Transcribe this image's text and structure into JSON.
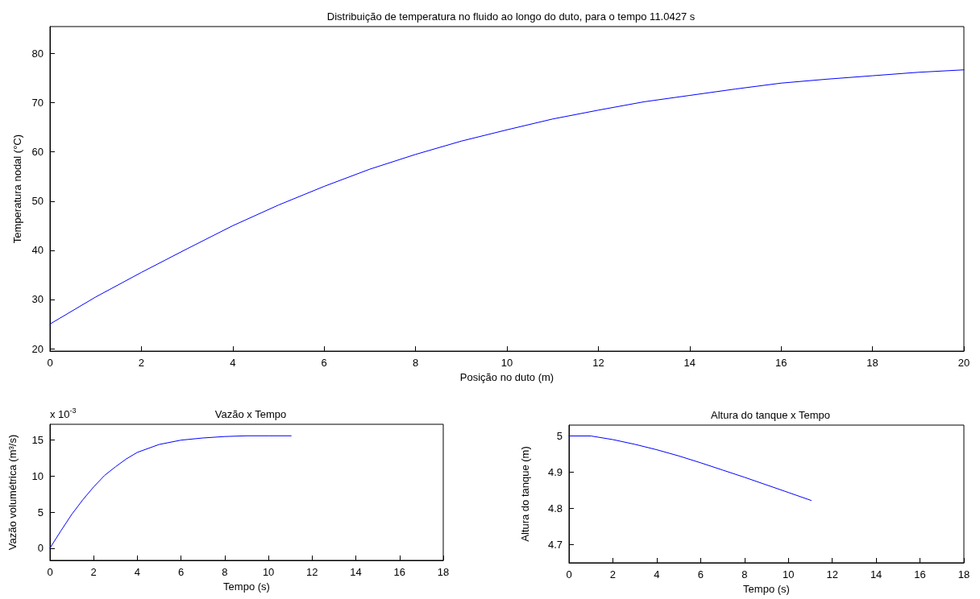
{
  "chart_data": [
    {
      "type": "line",
      "title": "Distribuição de temperatura no fluido ao longo do duto, para o tempo 11.0427 s",
      "xlabel": "Posição no duto (m)",
      "ylabel": "Temperatura nodal (°C)",
      "x": [
        0,
        1,
        2,
        3,
        4,
        5,
        6,
        7,
        8,
        9,
        10,
        11,
        12,
        13,
        14,
        15,
        16,
        17,
        18,
        19,
        20
      ],
      "series": [
        {
          "color": "#0000ff",
          "values": [
            25,
            30.5,
            35.5,
            40.3,
            45,
            49.2,
            53,
            56.5,
            59.5,
            62.2,
            64.5,
            66.7,
            68.5,
            70.2,
            71.5,
            72.8,
            74,
            74.8,
            75.5,
            76.2,
            76.7
          ]
        }
      ],
      "xlim": [
        0,
        20
      ],
      "xticks": [
        0,
        2,
        4,
        6,
        8,
        10,
        12,
        14,
        16,
        18,
        20
      ],
      "ylim": [
        19.5,
        85.5
      ],
      "yticks": [
        20,
        30,
        40,
        50,
        60,
        70,
        80
      ],
      "grid": false,
      "marker": "none",
      "line_style": "solid"
    },
    {
      "type": "line",
      "title": "Vazão x Tempo",
      "xlabel": "Tempo (s)",
      "ylabel": "Vazão volumétrica (m³/s)",
      "annotations": [
        "x 10$^{-3}$"
      ],
      "x": [
        0,
        0.5,
        1,
        1.5,
        2,
        2.5,
        3,
        3.5,
        4,
        5,
        6,
        7,
        8,
        9,
        10,
        11.04
      ],
      "series": [
        {
          "color": "#0000ff",
          "values": [
            0,
            2.4,
            4.7,
            6.7,
            8.5,
            10.1,
            11.3,
            12.4,
            13.3,
            14.4,
            15,
            15.3,
            15.5,
            15.6,
            15.6,
            15.6
          ]
        }
      ],
      "xlim": [
        0,
        18
      ],
      "xticks": [
        0,
        2,
        4,
        6,
        8,
        10,
        12,
        14,
        16,
        18
      ],
      "ylim": [
        -1.7,
        17.2
      ],
      "yticks": [
        0,
        5,
        10,
        15
      ],
      "grid": false,
      "marker": "none",
      "line_style": "solid"
    },
    {
      "type": "line",
      "title": "Altura do tanque x Tempo",
      "xlabel": "Tempo (s)",
      "ylabel": "Altura do tanque (m)",
      "x": [
        0,
        1,
        2,
        3,
        4,
        5,
        6,
        7,
        8,
        9,
        10,
        11.04
      ],
      "series": [
        {
          "color": "#0000ff",
          "values": [
            5,
            5,
            4.99,
            4.977,
            4.962,
            4.945,
            4.926,
            4.906,
            4.886,
            4.865,
            4.844,
            4.822
          ]
        }
      ],
      "xlim": [
        0,
        18
      ],
      "xticks": [
        0,
        2,
        4,
        6,
        8,
        10,
        12,
        14,
        16,
        18
      ],
      "ylim": [
        4.65,
        5.03
      ],
      "yticks": [
        4.7,
        4.8,
        4.9,
        5
      ],
      "grid": false,
      "marker": "none",
      "line_style": "solid"
    }
  ]
}
